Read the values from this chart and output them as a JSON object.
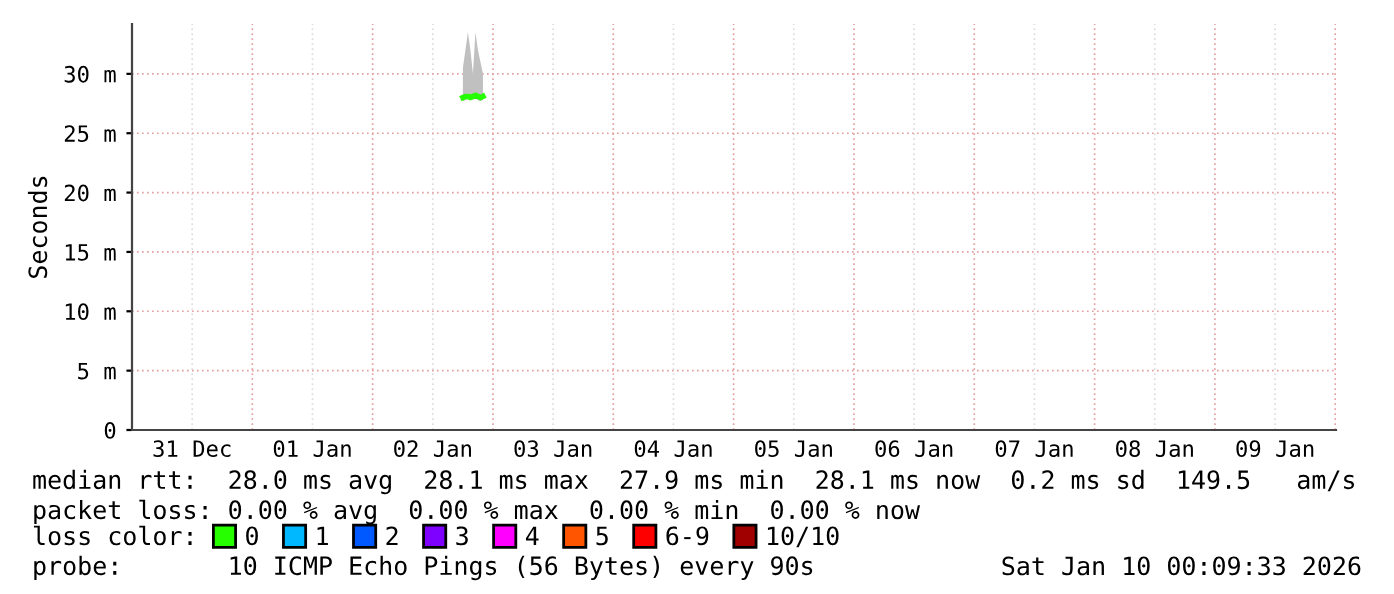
{
  "chart_data": {
    "type": "line",
    "ylabel": "Seconds",
    "xlim": [
      "2025-12-31T00:00",
      "2026-01-10T00:09"
    ],
    "xticks": [
      {
        "value": "2025-12-31T12:00",
        "label": "31 Dec"
      },
      {
        "value": "2026-01-01T12:00",
        "label": "01 Jan"
      },
      {
        "value": "2026-01-02T12:00",
        "label": "02 Jan"
      },
      {
        "value": "2026-01-03T12:00",
        "label": "03 Jan"
      },
      {
        "value": "2026-01-04T12:00",
        "label": "04 Jan"
      },
      {
        "value": "2026-01-05T12:00",
        "label": "05 Jan"
      },
      {
        "value": "2026-01-06T12:00",
        "label": "06 Jan"
      },
      {
        "value": "2026-01-07T12:00",
        "label": "07 Jan"
      },
      {
        "value": "2026-01-08T12:00",
        "label": "08 Jan"
      },
      {
        "value": "2026-01-09T12:00",
        "label": "09 Jan"
      }
    ],
    "ylim": [
      0,
      34.2
    ],
    "yticks": [
      0,
      {
        "value": 5,
        "label": "5 m"
      },
      {
        "value": 10,
        "label": "10 m"
      },
      {
        "value": 15,
        "label": "15 m"
      },
      {
        "value": 20,
        "label": "20 m"
      },
      {
        "value": 25,
        "label": "25 m"
      },
      {
        "value": 30,
        "label": "30 m"
      }
    ],
    "grid": true,
    "legend": "bottom",
    "legend_title": "loss color:",
    "series": [
      {
        "color": "#26ff00",
        "x": [
          "2026-01-02T18:00",
          "2026-01-02T18:30",
          "2026-01-02T19:00",
          "2026-01-02T19:30",
          "2026-01-02T20:00",
          "2026-01-02T20:30",
          "2026-01-02T21:00",
          "2026-01-02T21:30",
          "2026-01-02T22:00"
        ],
        "values": [
          28.0,
          28.1,
          28.1,
          28.0,
          28.1,
          28.2,
          28.1,
          28.0,
          28.1
        ],
        "lower": [
          27.7,
          27.8,
          27.9,
          27.8,
          27.9,
          27.9,
          27.8,
          27.7,
          27.8
        ],
        "upper": [
          30.5,
          32.0,
          33.5,
          32.0,
          30.0,
          33.5,
          32.0,
          31.0,
          30.0
        ]
      },
      {
        "name": "0",
        "color": "#26ff00"
      },
      {
        "name": "1",
        "color": "#00b8ff"
      },
      {
        "name": "2",
        "color": "#0059ff"
      },
      {
        "name": "3",
        "color": "#7e00ff"
      },
      {
        "name": "4",
        "color": "#ff00ff"
      },
      {
        "name": "5",
        "color": "#ff5500"
      },
      {
        "name": "6-9",
        "color": "#ff0000"
      },
      {
        "name": "10/10",
        "color": "#a10000"
      }
    ],
    "annotations": [
      "median rtt:  28.0 ms avg  28.1 ms max  27.9 ms min  28.1 ms now  0.2 ms sd  149.5   am/s",
      "packet loss: 0.00 % avg  0.00 % max  0.00 % min  0.00 % now",
      "probe:       10 ICMP Echo Pings (56 Bytes) every 90s",
      "Sat Jan 10 00:09:33 2026"
    ]
  }
}
